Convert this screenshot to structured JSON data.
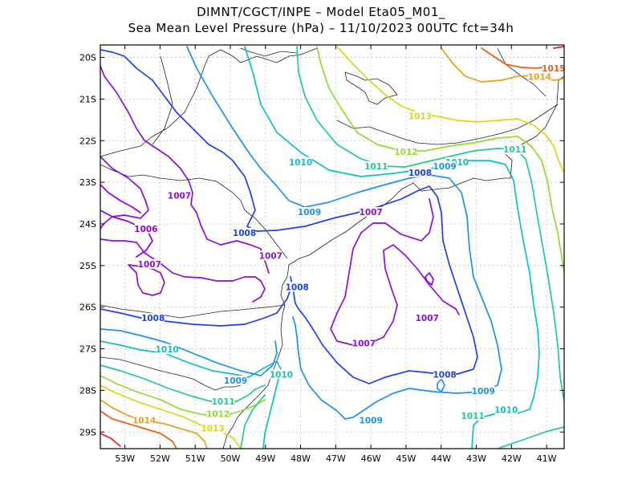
{
  "title": {
    "line1": "DIMNT/CGCT/INPE –  Model Eta05_M01_",
    "line2": "Sea Mean Level Pressure (hPa) – 11/10/2023 00UTC fct=34h"
  },
  "map": {
    "lon_range": [
      -53.7,
      -40.5
    ],
    "lat_range": [
      -29.4,
      -19.7
    ],
    "lat_labels": [
      {
        "lat": -20,
        "label": "20S"
      },
      {
        "lat": -21,
        "label": "21S"
      },
      {
        "lat": -22,
        "label": "22S"
      },
      {
        "lat": -23,
        "label": "23S"
      },
      {
        "lat": -24,
        "label": "24S"
      },
      {
        "lat": -25,
        "label": "25S"
      },
      {
        "lat": -26,
        "label": "26S"
      },
      {
        "lat": -27,
        "label": "27S"
      },
      {
        "lat": -28,
        "label": "28S"
      },
      {
        "lat": -29,
        "label": "29S"
      }
    ],
    "lon_labels": [
      {
        "lon": -53,
        "label": "53W"
      },
      {
        "lon": -52,
        "label": "52W"
      },
      {
        "lon": -51,
        "label": "51W"
      },
      {
        "lon": -50,
        "label": "50W"
      },
      {
        "lon": -49,
        "label": "49W"
      },
      {
        "lon": -48,
        "label": "48W"
      },
      {
        "lon": -47,
        "label": "47W"
      },
      {
        "lon": -46,
        "label": "46W"
      },
      {
        "lon": -45,
        "label": "45W"
      },
      {
        "lon": -44,
        "label": "44W"
      },
      {
        "lon": -43,
        "label": "43W"
      },
      {
        "lon": -42,
        "label": "42W"
      },
      {
        "lon": -41,
        "label": "41W"
      }
    ],
    "isobar_colors": {
      "1006": "#9a00d0",
      "1007": "#8a10d6",
      "1008": "#1e40e6",
      "1009": "#2090f0",
      "1010": "#10c0c0",
      "1011": "#20cc88",
      "1012": "#90dc30",
      "1013": "#d8d818",
      "1014": "#eca020",
      "1015": "#e86018",
      "1016": "#e02020"
    },
    "contour_labels": [
      {
        "text": "1015",
        "lon": -40.8,
        "lat": -20.3,
        "level": "1015"
      },
      {
        "text": "1014",
        "lon": -41.2,
        "lat": -20.5,
        "level": "1014"
      },
      {
        "text": "1013",
        "lon": -44.6,
        "lat": -21.45,
        "level": "1013"
      },
      {
        "text": "1012",
        "lon": -45.0,
        "lat": -22.3,
        "level": "1012"
      },
      {
        "text": "1011",
        "lon": -45.85,
        "lat": -22.65,
        "level": "1011"
      },
      {
        "text": "1010",
        "lon": -48.0,
        "lat": -22.55,
        "level": "1010"
      },
      {
        "text": "1011",
        "lon": -41.9,
        "lat": -22.25,
        "level": "1011"
      },
      {
        "text": "1010",
        "lon": -43.55,
        "lat": -22.55,
        "level": "1010"
      },
      {
        "text": "1009",
        "lon": -43.9,
        "lat": -22.65,
        "level": "1009"
      },
      {
        "text": "1008",
        "lon": -44.6,
        "lat": -22.8,
        "level": "1008"
      },
      {
        "text": "1007",
        "lon": -51.45,
        "lat": -23.35,
        "level": "1007"
      },
      {
        "text": "1009",
        "lon": -47.75,
        "lat": -23.75,
        "level": "1009"
      },
      {
        "text": "1007",
        "lon": -46.0,
        "lat": -23.75,
        "level": "1007"
      },
      {
        "text": "1006",
        "lon": -52.4,
        "lat": -24.15,
        "level": "1006"
      },
      {
        "text": "1008",
        "lon": -49.6,
        "lat": -24.25,
        "level": "1008"
      },
      {
        "text": "1007",
        "lon": -48.85,
        "lat": -24.8,
        "level": "1007"
      },
      {
        "text": "1007",
        "lon": -52.3,
        "lat": -25.0,
        "level": "1007"
      },
      {
        "text": "1008",
        "lon": -48.1,
        "lat": -25.55,
        "level": "1008"
      },
      {
        "text": "1008",
        "lon": -52.2,
        "lat": -26.3,
        "level": "1008"
      },
      {
        "text": "1007",
        "lon": -44.4,
        "lat": -26.3,
        "level": "1007"
      },
      {
        "text": "1010",
        "lon": -51.8,
        "lat": -27.05,
        "level": "1010"
      },
      {
        "text": "1007",
        "lon": -46.2,
        "lat": -26.9,
        "level": "1007"
      },
      {
        "text": "1010",
        "lon": -48.55,
        "lat": -27.65,
        "level": "1010"
      },
      {
        "text": "1008",
        "lon": -43.9,
        "lat": -27.65,
        "level": "1008"
      },
      {
        "text": "1009",
        "lon": -49.85,
        "lat": -27.8,
        "level": "1009"
      },
      {
        "text": "1009",
        "lon": -42.8,
        "lat": -28.05,
        "level": "1009"
      },
      {
        "text": "1011",
        "lon": -50.2,
        "lat": -28.3,
        "level": "1011"
      },
      {
        "text": "1010",
        "lon": -42.15,
        "lat": -28.5,
        "level": "1010"
      },
      {
        "text": "1012",
        "lon": -50.35,
        "lat": -28.6,
        "level": "1012"
      },
      {
        "text": "1011",
        "lon": -43.1,
        "lat": -28.65,
        "level": "1011"
      },
      {
        "text": "1009",
        "lon": -46.0,
        "lat": -28.75,
        "level": "1009"
      },
      {
        "text": "1014",
        "lon": -52.45,
        "lat": -28.75,
        "level": "1014"
      },
      {
        "text": "1013",
        "lon": -50.5,
        "lat": -28.95,
        "level": "1013"
      }
    ]
  }
}
